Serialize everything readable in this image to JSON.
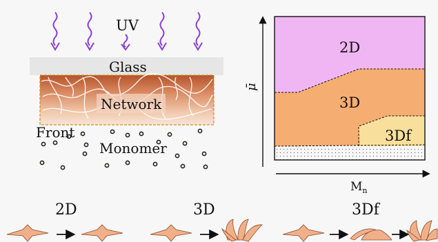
{
  "left_panel": {
    "uv_label": "UV",
    "glass_label": "Glass",
    "network_label": "Network",
    "front_label": "Front",
    "monomer_label": "Monomer"
  },
  "phase_diagram": {
    "y_axis_label": "μ̄",
    "x_axis_label_main": "M",
    "x_axis_label_sub": "n",
    "regions": [
      {
        "label": "2D",
        "color": "#f0b6f3"
      },
      {
        "label": "3D",
        "color": "#f6ad72"
      },
      {
        "label": "3Df",
        "color": "#f8df9c"
      }
    ]
  },
  "shape_rows": [
    {
      "label": "2D"
    },
    {
      "label": "3D"
    },
    {
      "label": "3Df"
    }
  ]
}
